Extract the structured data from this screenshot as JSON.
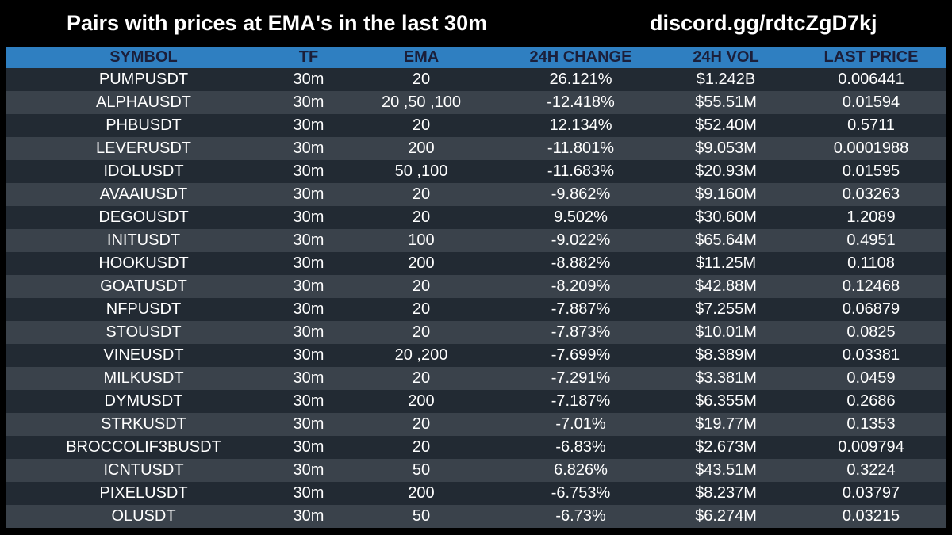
{
  "header": {
    "title": "Pairs with prices at EMA's in the last 30m",
    "discord": "discord.gg/rdtcZgD7kj"
  },
  "colors": {
    "header_row": "#2f7fc1",
    "row_dark": "#222a33",
    "row_light": "#3a424b",
    "background": "#000000"
  },
  "table": {
    "columns": [
      "SYMBOL",
      "TF",
      "EMA",
      "24H CHANGE",
      "24H VOL",
      "LAST PRICE"
    ],
    "rows": [
      [
        "PUMPUSDT",
        "30m",
        "20",
        "26.121%",
        "$1.242B",
        "0.006441"
      ],
      [
        "ALPHAUSDT",
        "30m",
        "20 ,50 ,100",
        "-12.418%",
        "$55.51M",
        "0.01594"
      ],
      [
        "PHBUSDT",
        "30m",
        "20",
        "12.134%",
        "$52.40M",
        "0.5711"
      ],
      [
        "LEVERUSDT",
        "30m",
        "200",
        "-11.801%",
        "$9.053M",
        "0.0001988"
      ],
      [
        "IDOLUSDT",
        "30m",
        "50 ,100",
        "-11.683%",
        "$20.93M",
        "0.01595"
      ],
      [
        "AVAAIUSDT",
        "30m",
        "20",
        "-9.862%",
        "$9.160M",
        "0.03263"
      ],
      [
        "DEGOUSDT",
        "30m",
        "20",
        "9.502%",
        "$30.60M",
        "1.2089"
      ],
      [
        "INITUSDT",
        "30m",
        "100",
        "-9.022%",
        "$65.64M",
        "0.4951"
      ],
      [
        "HOOKUSDT",
        "30m",
        "200",
        "-8.882%",
        "$11.25M",
        "0.1108"
      ],
      [
        "GOATUSDT",
        "30m",
        "20",
        "-8.209%",
        "$42.88M",
        "0.12468"
      ],
      [
        "NFPUSDT",
        "30m",
        "20",
        "-7.887%",
        "$7.255M",
        "0.06879"
      ],
      [
        "STOUSDT",
        "30m",
        "20",
        "-7.873%",
        "$10.01M",
        "0.0825"
      ],
      [
        "VINEUSDT",
        "30m",
        "20 ,200",
        "-7.699%",
        "$8.389M",
        "0.03381"
      ],
      [
        "MILKUSDT",
        "30m",
        "20",
        "-7.291%",
        "$3.381M",
        "0.0459"
      ],
      [
        "DYMUSDT",
        "30m",
        "200",
        "-7.187%",
        "$6.355M",
        "0.2686"
      ],
      [
        "STRKUSDT",
        "30m",
        "20",
        "-7.01%",
        "$19.77M",
        "0.1353"
      ],
      [
        "BROCCOLIF3BUSDT",
        "30m",
        "20",
        "-6.83%",
        "$2.673M",
        "0.009794"
      ],
      [
        "ICNTUSDT",
        "30m",
        "50",
        "6.826%",
        "$43.51M",
        "0.3224"
      ],
      [
        "PIXELUSDT",
        "30m",
        "200",
        "-6.753%",
        "$8.237M",
        "0.03797"
      ],
      [
        "OLUSDT",
        "30m",
        "50",
        "-6.73%",
        "$6.274M",
        "0.03215"
      ]
    ]
  }
}
